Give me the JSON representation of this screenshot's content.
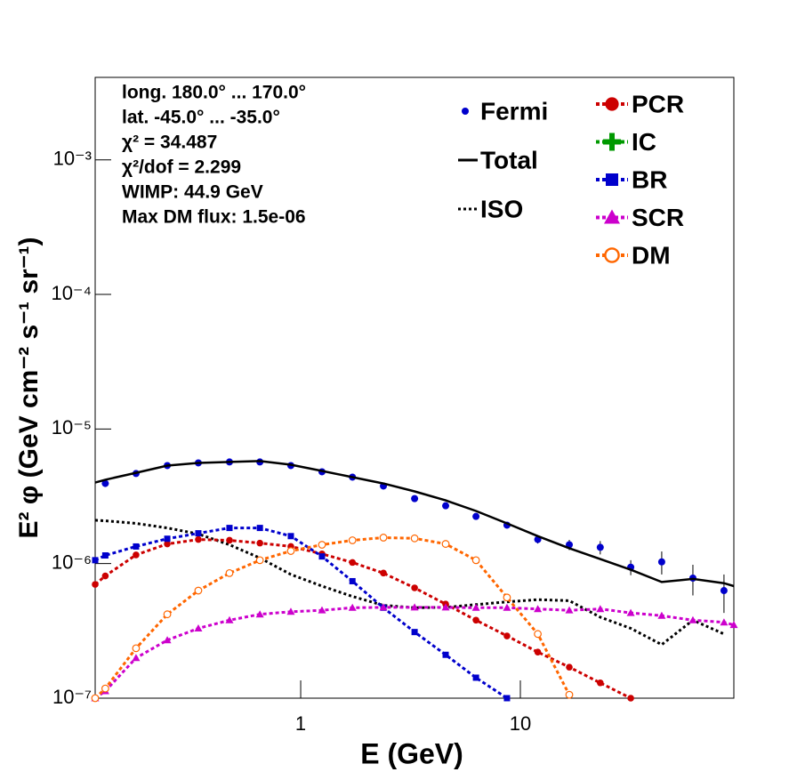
{
  "chart_data": {
    "type": "line",
    "xlabel": "E (GeV)",
    "ylabel": "E² φ (GeV cm⁻² s⁻¹ sr⁻¹)",
    "annotations": [
      "long. 180.0° ... 170.0°",
      "lat. -45.0° ... -35.0°",
      "χ² = 34.487",
      "χ²/dof = 2.299",
      "WIMP: 44.9 GeV",
      "Max DM flux: 1.5e-06"
    ],
    "xlog": true,
    "ylog": true,
    "xlim": [
      0.116,
      93.7
    ],
    "ylim": [
      1e-07,
      0.0041
    ],
    "xticks": [
      1,
      10
    ],
    "yticks": [
      {
        "value": 1e-07,
        "label": "10⁻⁷"
      },
      {
        "value": 1e-06,
        "label": "10⁻⁶"
      },
      {
        "value": 1e-05,
        "label": "10⁻⁵"
      },
      {
        "value": 0.0001,
        "label": "10⁻⁴"
      },
      {
        "value": 0.001,
        "label": "10⁻³"
      }
    ],
    "x": [
      0.116,
      0.129,
      0.178,
      0.247,
      0.342,
      0.474,
      0.652,
      0.902,
      1.25,
      1.72,
      2.38,
      3.3,
      4.57,
      6.28,
      8.69,
      12.0,
      16.7,
      23.1,
      31.8,
      44.0,
      61.0,
      84.5,
      93.7
    ],
    "series": [
      {
        "name": "Fermi",
        "color": "#0000cc",
        "style": "points",
        "values": [
          null,
          3.94e-06,
          4.67e-06,
          5.35e-06,
          5.6e-06,
          5.69e-06,
          5.69e-06,
          5.35e-06,
          4.81e-06,
          4.39e-06,
          3.77e-06,
          3.04e-06,
          2.69e-06,
          2.24e-06,
          1.93e-06,
          1.51e-06,
          1.38e-06,
          1.32e-06,
          9.4e-07,
          1.03e-06,
          7.8e-07,
          6.3e-07,
          null
        ],
        "errors": [
          null,
          1e-07,
          1e-07,
          1e-07,
          1e-07,
          1e-07,
          1e-07,
          1e-07,
          1e-07,
          1e-07,
          1e-07,
          1e-07,
          1e-07,
          1e-07,
          1e-07,
          1e-07,
          1.2e-07,
          1.5e-07,
          1.2e-07,
          2e-07,
          2e-07,
          2e-07,
          null
        ]
      },
      {
        "name": "Total",
        "color": "#000000",
        "style": "solid",
        "values": [
          4e-06,
          4.2e-06,
          4.73e-06,
          5.35e-06,
          5.6e-06,
          5.69e-06,
          5.78e-06,
          5.43e-06,
          4.88e-06,
          4.39e-06,
          3.94e-06,
          3.44e-06,
          2.95e-06,
          2.46e-06,
          1.99e-06,
          1.6e-06,
          1.3e-06,
          1.08e-06,
          9e-07,
          7.3e-07,
          7.7e-07,
          7.15e-07,
          6.8e-07
        ]
      },
      {
        "name": "ISO",
        "color": "#000000",
        "style": "dotted",
        "values": [
          2.1e-06,
          2.08e-06,
          1.99e-06,
          1.84e-06,
          1.66e-06,
          1.38e-06,
          1.1e-06,
          8.3e-07,
          6.8e-07,
          5.7e-07,
          4.9e-07,
          4.7e-07,
          4.73e-07,
          4.96e-07,
          5.2e-07,
          5.4e-07,
          5.3e-07,
          4e-07,
          3.3e-07,
          2.5e-07,
          3.8e-07,
          3e-07,
          null
        ]
      },
      {
        "name": "PCR",
        "color": "#cc0000",
        "style": "marker",
        "marker": "circle",
        "values": [
          7e-07,
          8.1e-07,
          1.16e-06,
          1.4e-06,
          1.51e-06,
          1.49e-06,
          1.42e-06,
          1.34e-06,
          1.18e-06,
          1.02e-06,
          8.5e-07,
          6.6e-07,
          5e-07,
          3.8e-07,
          2.9e-07,
          2.2e-07,
          1.7e-07,
          1.3e-07,
          1e-07,
          null,
          null,
          null,
          null
        ]
      },
      {
        "name": "IC",
        "color": "#009900",
        "style": "marker",
        "marker": "star",
        "values": [
          null,
          null,
          null,
          null,
          null,
          null,
          null,
          null,
          null,
          null,
          null,
          null,
          null,
          null,
          null,
          null,
          null,
          null,
          null,
          null,
          null,
          null,
          null
        ]
      },
      {
        "name": "BR",
        "color": "#0000cc",
        "style": "marker",
        "marker": "square",
        "values": [
          1.06e-06,
          1.15e-06,
          1.34e-06,
          1.53e-06,
          1.68e-06,
          1.84e-06,
          1.84e-06,
          1.6e-06,
          1.13e-06,
          7.4e-07,
          4.7e-07,
          3.1e-07,
          2.1e-07,
          1.42e-07,
          1e-07,
          null,
          null,
          null,
          null,
          null,
          null,
          null,
          null
        ]
      },
      {
        "name": "SCR",
        "color": "#cc00cc",
        "style": "marker",
        "marker": "triangle",
        "values": [
          1e-07,
          1.13e-07,
          1.99e-07,
          2.7e-07,
          3.3e-07,
          3.8e-07,
          4.2e-07,
          4.39e-07,
          4.5e-07,
          4.7e-07,
          4.73e-07,
          4.73e-07,
          4.73e-07,
          4.7e-07,
          4.7e-07,
          4.6e-07,
          4.5e-07,
          4.6e-07,
          4.3e-07,
          4.1e-07,
          3.8e-07,
          3.66e-07,
          3.5e-07
        ]
      },
      {
        "name": "DM",
        "color": "#ff6600",
        "style": "marker",
        "marker": "open-circle",
        "values": [
          1e-07,
          1.18e-07,
          2.35e-07,
          4.2e-07,
          6.3e-07,
          8.5e-07,
          1.06e-06,
          1.24e-06,
          1.38e-06,
          1.49e-06,
          1.56e-06,
          1.54e-06,
          1.4e-06,
          1.06e-06,
          5.6e-07,
          3e-07,
          1.06e-07,
          null,
          null,
          null,
          null,
          null,
          null
        ]
      }
    ]
  }
}
